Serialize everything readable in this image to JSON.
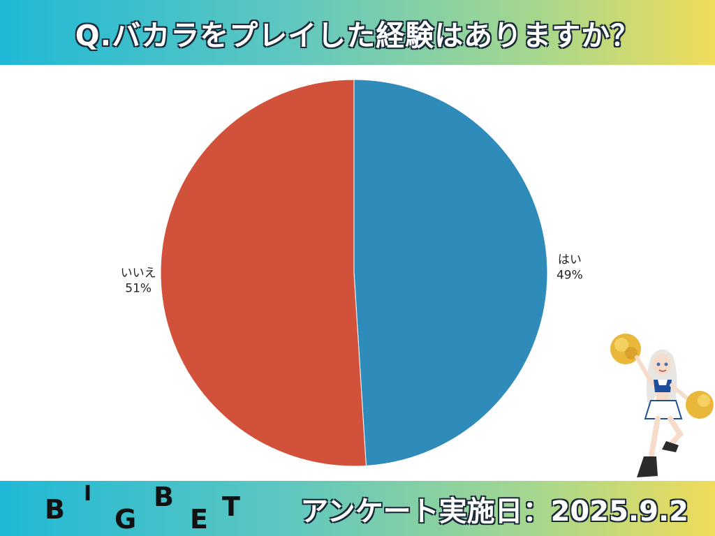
{
  "header": {
    "title": "Q.バカラをプレイした経験はありますか？"
  },
  "footer": {
    "logo_letters": [
      "B",
      "I",
      "G",
      "B",
      "E",
      "T"
    ],
    "survey_date": "アンケート実施日：2025.9.2"
  },
  "chart_data": {
    "type": "pie",
    "title": "Q.バカラをプレイした経験はありますか？",
    "slices": [
      {
        "label": "はい",
        "value": 49,
        "value_label": "49%",
        "color": "#2e8bba"
      },
      {
        "label": "いいえ",
        "value": 51,
        "value_label": "51%",
        "color": "#d2513a"
      }
    ],
    "start_angle": "12-o'clock",
    "direction": "clockwise",
    "legend": "none"
  }
}
